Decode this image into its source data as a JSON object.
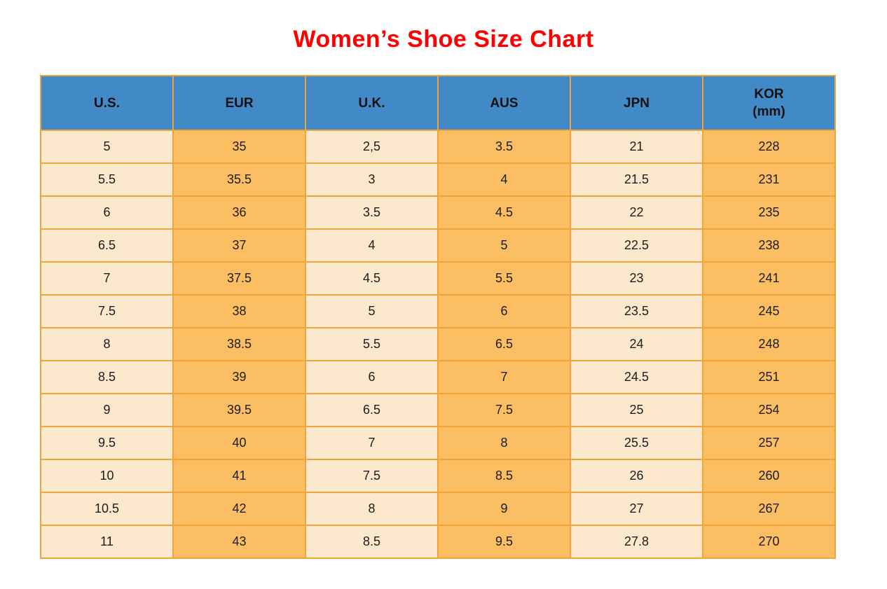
{
  "page": {
    "title": "Women’s Shoe Size Chart"
  },
  "colors": {
    "title_red": "#FF0000",
    "header_blue": "#4189C7",
    "cell_cream": "#FCE9CD",
    "cell_orange": "#FCBE63",
    "border_orange": "#F2A33A",
    "text": "#1C1C1C"
  },
  "chart_data": {
    "type": "table",
    "title": "Women’s Shoe Size Chart",
    "columns": [
      "U.S.",
      "EUR",
      "U.K.",
      "AUS",
      "JPN",
      "KOR (mm)"
    ],
    "header_lines": [
      [
        "U.S."
      ],
      [
        "EUR"
      ],
      [
        "U.K."
      ],
      [
        "AUS"
      ],
      [
        "JPN"
      ],
      [
        "KOR",
        "(mm)"
      ]
    ],
    "rows": [
      [
        "5",
        "35",
        "2,5",
        "3.5",
        "21",
        "228"
      ],
      [
        "5.5",
        "35.5",
        "3",
        "4",
        "21.5",
        "231"
      ],
      [
        "6",
        "36",
        "3.5",
        "4.5",
        "22",
        "235"
      ],
      [
        "6.5",
        "37",
        "4",
        "5",
        "22.5",
        "238"
      ],
      [
        "7",
        "37.5",
        "4.5",
        "5.5",
        "23",
        "241"
      ],
      [
        "7.5",
        "38",
        "5",
        "6",
        "23.5",
        "245"
      ],
      [
        "8",
        "38.5",
        "5.5",
        "6.5",
        "24",
        "248"
      ],
      [
        "8.5",
        "39",
        "6",
        "7",
        "24.5",
        "251"
      ],
      [
        "9",
        "39.5",
        "6.5",
        "7.5",
        "25",
        "254"
      ],
      [
        "9.5",
        "40",
        "7",
        "8",
        "25.5",
        "257"
      ],
      [
        "10",
        "41",
        "7.5",
        "8.5",
        "26",
        "260"
      ],
      [
        "10.5",
        "42",
        "8",
        "9",
        "27",
        "267"
      ],
      [
        "11",
        "43",
        "8.5",
        "9.5",
        "27.8",
        "270"
      ]
    ]
  }
}
